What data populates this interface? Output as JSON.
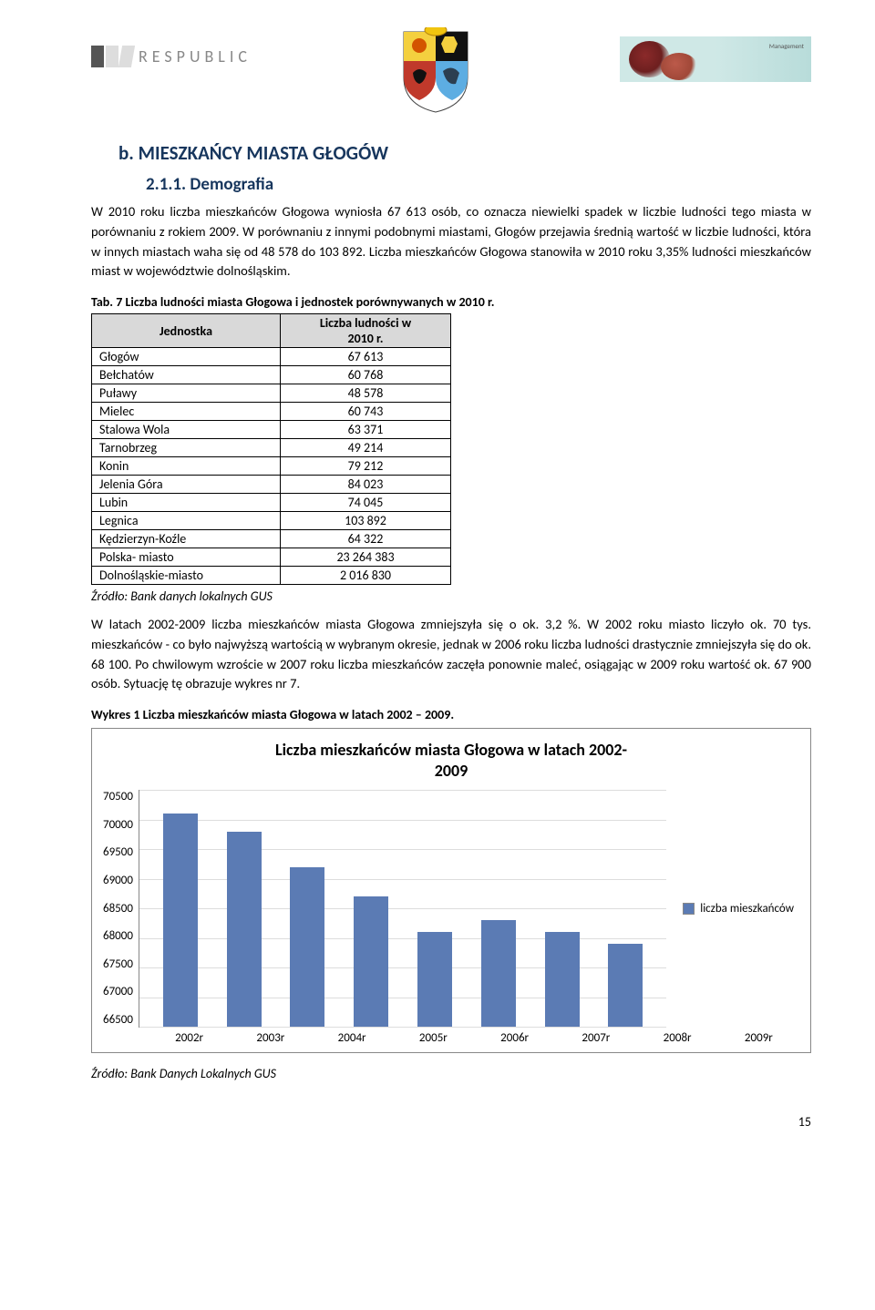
{
  "header": {
    "brand_text": "RESPUBLIC",
    "banner_text": "Management"
  },
  "section_b": {
    "title": "b. MIESZKAŃCY MIASTA GŁOGÓW"
  },
  "subsection": {
    "number_title": "2.1.1. Demografia",
    "para1": "W 2010 roku liczba mieszkańców Głogowa wyniosła 67 613 osób, co oznacza niewielki spadek w liczbie ludności tego miasta w porównaniu z rokiem 2009. W porównaniu z innymi podobnymi miastami, Głogów przejawia średnią wartość w liczbie ludności, która w innych miastach waha się od 48 578 do 103 892.  Liczba mieszkańców Głogowa stanowiła w 2010 roku 3,35% ludności mieszkańców miast w województwie dolnośląskim."
  },
  "table": {
    "caption": "Tab. 7 Liczba ludności miasta Głogowa i jednostek porównywanych w 2010 r.",
    "col1": "Jednostka",
    "col2_line1": "Liczba ludności w",
    "col2_line2": "2010 r.",
    "rows": [
      {
        "unit": "Głogów",
        "val": "67 613"
      },
      {
        "unit": "Bełchatów",
        "val": "60 768"
      },
      {
        "unit": "Puławy",
        "val": "48 578"
      },
      {
        "unit": "Mielec",
        "val": "60 743"
      },
      {
        "unit": "Stalowa Wola",
        "val": "63 371"
      },
      {
        "unit": "Tarnobrzeg",
        "val": "49 214"
      },
      {
        "unit": "Konin",
        "val": "79 212"
      },
      {
        "unit": "Jelenia Góra",
        "val": "84 023"
      },
      {
        "unit": "Lubin",
        "val": "74 045"
      },
      {
        "unit": "Legnica",
        "val": "103 892"
      },
      {
        "unit": "Kędzierzyn-Koźle",
        "val": "64 322"
      },
      {
        "unit": "Polska- miasto",
        "val": "23 264 383"
      },
      {
        "unit": "Dolnośląskie-miasto",
        "val": "2 016 830"
      }
    ],
    "source": "Źródło: Bank danych lokalnych GUS"
  },
  "para2": "W latach 2002-2009 liczba mieszkańców miasta Głogowa zmniejszyła się o ok. 3,2 %. W 2002 roku miasto liczyło ok. 70 tys. mieszkańców - co było najwyższą wartością w wybranym okresie, jednak w 2006 roku liczba ludności drastycznie zmniejszyła się do ok. 68 100. Po chwilowym wzroście w 2007 roku liczba mieszkańców zaczęła ponownie maleć, osiągając w 2009 roku wartość ok. 67 900 osób. Sytuację tę obrazuje wykres nr 7.",
  "chart": {
    "caption": "Wykres 1 Liczba mieszkańców miasta Głogowa w latach 2002 – 2009.",
    "title_line1": "Liczba mieszkańców miasta Głogowa w latach 2002-",
    "title_line2": "2009",
    "y_min": 66500,
    "y_max": 70500,
    "y_ticks": [
      "70500",
      "70000",
      "69500",
      "69000",
      "68500",
      "68000",
      "67500",
      "67000",
      "66500"
    ],
    "categories": [
      "2002r",
      "2003r",
      "2004r",
      "2005r",
      "2006r",
      "2007r",
      "2008r",
      "2009r"
    ],
    "values": [
      70100,
      69800,
      69200,
      68700,
      68100,
      68300,
      68100,
      67900
    ],
    "bar_color": "#5b7bb4",
    "grid_color": "#dddddd",
    "legend_label": "liczba mieszkańców",
    "source": "Źródło: Bank Danych Lokalnych GUS"
  },
  "page_number": "15"
}
